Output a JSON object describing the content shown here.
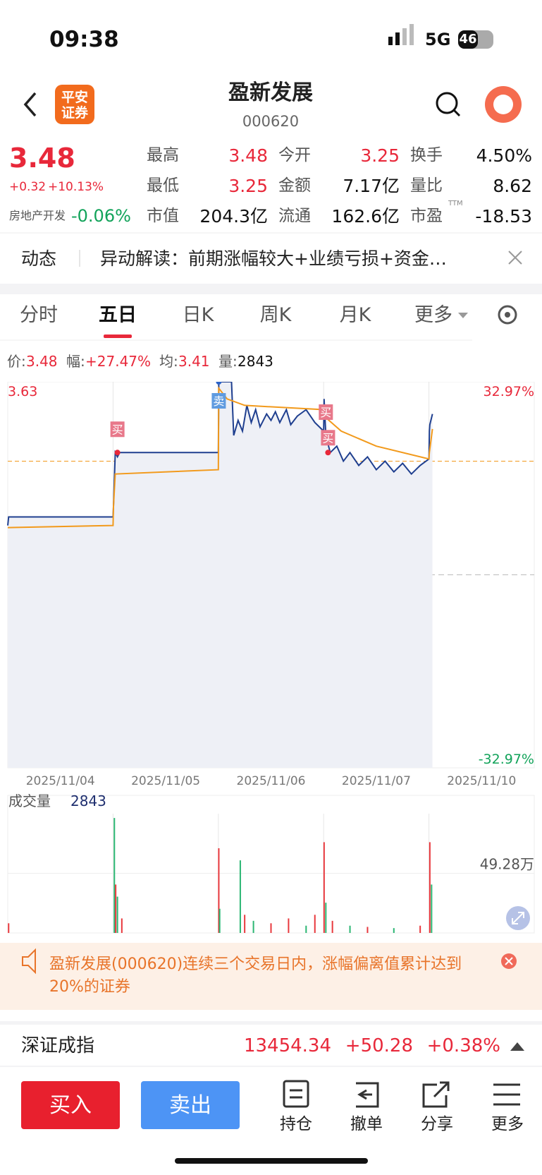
{
  "status_bar": {
    "time": "09:38",
    "network": "5G",
    "battery": "46"
  },
  "header": {
    "logo": [
      "平安",
      "证券"
    ],
    "title": "盈新发展",
    "code": "000620"
  },
  "quote": {
    "price": "3.48",
    "change": "+0.32",
    "change_pct": "+10.13%",
    "sector": "房地产开发",
    "sector_change": "-0.06%",
    "pe_note": "TTM",
    "fields": [
      [
        "最高",
        "3.48"
      ],
      [
        "今开",
        "3.25"
      ],
      [
        "换手",
        "4.50%"
      ],
      [
        "最低",
        "3.25"
      ],
      [
        "金额",
        "7.17亿"
      ],
      [
        "量比",
        "8.62"
      ],
      [
        "市值",
        "204.3亿"
      ],
      [
        "流通",
        "162.6亿"
      ],
      [
        "市盈",
        "-18.53"
      ]
    ]
  },
  "news": {
    "label": "动态",
    "text": "异动解读：前期涨幅较大+业绩亏损+资金…"
  },
  "tabs": [
    "分时",
    "五日",
    "日K",
    "周K",
    "月K",
    "更多"
  ],
  "info": [
    [
      "价:",
      "3.48"
    ],
    [
      "幅:",
      "+27.47%"
    ],
    [
      "均:",
      "3.41"
    ],
    [
      "量:",
      "2843"
    ]
  ],
  "chart_data": [
    {
      "type": "line",
      "xlim": [
        0,
        1200
      ],
      "xticks": [
        {
          "value": 0,
          "label": "2025/11/04"
        },
        {
          "value": 240,
          "label": "2025/11/05"
        },
        {
          "value": 480,
          "label": "2025/11/06"
        },
        {
          "value": 720,
          "label": "2025/11/07"
        },
        {
          "value": 960,
          "label": "2025/11/10"
        }
      ],
      "ylim": [
        1.83,
        3.63
      ],
      "yticks": [
        3.63,
        2.73,
        1.83
      ],
      "y2lim": [
        -32.97,
        32.97
      ],
      "y2ticks": [
        {
          "value": 32.97,
          "label": "32.97%"
        },
        {
          "value": -32.97,
          "label": "-32.97%"
        }
      ],
      "reference_line": 3.26,
      "series": [
        {
          "color": "#1f3f8f",
          "x": [
            0,
            2,
            240,
            241,
            245,
            250,
            255,
            480,
            481,
            510,
            515,
            525,
            535,
            545,
            555,
            565,
            575,
            590,
            600,
            610,
            620,
            635,
            645,
            660,
            680,
            700,
            720,
            721,
            725,
            735,
            750,
            765,
            780,
            800,
            820,
            840,
            860,
            880,
            900,
            920,
            940,
            960,
            961,
            962,
            968
          ],
          "values": [
            2.96,
            3.0,
            3.0,
            3.05,
            3.3,
            3.28,
            3.3,
            3.3,
            3.63,
            3.63,
            3.38,
            3.45,
            3.4,
            3.52,
            3.44,
            3.5,
            3.42,
            3.48,
            3.45,
            3.49,
            3.44,
            3.5,
            3.43,
            3.47,
            3.5,
            3.44,
            3.4,
            3.55,
            3.38,
            3.3,
            3.33,
            3.26,
            3.3,
            3.24,
            3.28,
            3.22,
            3.26,
            3.21,
            3.25,
            3.2,
            3.24,
            3.27,
            3.4,
            3.43,
            3.48
          ]
        },
        {
          "color": "#f29a1c",
          "x": [
            0,
            240,
            241,
            245,
            480,
            481,
            500,
            540,
            720,
            721,
            760,
            840,
            960,
            961,
            968
          ],
          "values": [
            2.95,
            2.96,
            3.05,
            3.2,
            3.22,
            3.6,
            3.55,
            3.52,
            3.5,
            3.47,
            3.4,
            3.33,
            3.27,
            3.3,
            3.41
          ]
        }
      ],
      "annotations": [
        {
          "text": "买",
          "x": 250,
          "y": 3.3
        },
        {
          "text": "卖",
          "x": 481,
          "y": 3.63
        },
        {
          "text": "买",
          "x": 725,
          "y": 3.38
        },
        {
          "text": "买",
          "x": 730,
          "y": 3.3
        }
      ]
    },
    {
      "type": "bar",
      "title": "成交量",
      "subtitle": "2843",
      "xlim": [
        0,
        1200
      ],
      "ylim": [
        0,
        98.56
      ],
      "yticks": [
        {
          "value": 49.28,
          "label": "49.28万"
        }
      ],
      "x": [
        2,
        243,
        246,
        250,
        260,
        481,
        483,
        530,
        540,
        560,
        600,
        640,
        680,
        700,
        721,
        725,
        740,
        780,
        820,
        880,
        940,
        962,
        966
      ],
      "values": [
        8,
        95,
        40,
        30,
        12,
        70,
        20,
        60,
        15,
        10,
        8,
        12,
        6,
        15,
        75,
        25,
        10,
        6,
        5,
        4,
        6,
        75,
        40
      ],
      "colors": [
        "#e8383d",
        "#2bb673",
        "#e8383d",
        "#2bb673",
        "#e8383d",
        "#e8383d",
        "#2bb673",
        "#2bb673",
        "#e8383d",
        "#2bb673",
        "#e8383d",
        "#e8383d",
        "#2bb673",
        "#e8383d",
        "#e8383d",
        "#2bb673",
        "#e8383d",
        "#2bb673",
        "#e8383d",
        "#2bb673",
        "#e8383d",
        "#e8383d",
        "#2bb673"
      ]
    }
  ],
  "alert": {
    "text": "盈新发展(000620)连续三个交易日内，涨幅偏离值累计达到20%的证券"
  },
  "index": {
    "name": "深证成指",
    "value": "13454.34",
    "change": "+50.28",
    "change_pct": "+0.38%"
  },
  "actions": {
    "buy": "买入",
    "sell": "卖出",
    "nav": [
      "持仓",
      "撤单",
      "分享",
      "更多"
    ]
  }
}
